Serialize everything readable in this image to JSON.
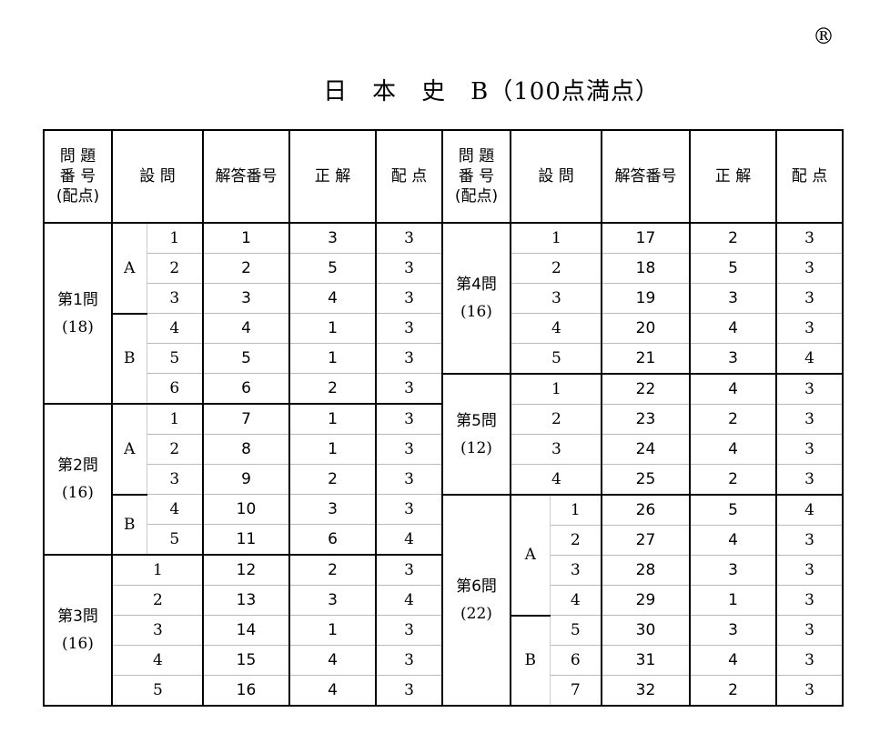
{
  "registered_mark": "®",
  "title": "日　本　史　B（100点満点）",
  "headers": [
    "問 題\n番 号\n(配点)",
    "設 問",
    "解答番号",
    "正 解",
    "配 点"
  ],
  "left": [
    {
      "label": "第1問",
      "points": "(18)",
      "groups": [
        {
          "name": "A",
          "rows": [
            [
              "1",
              "1",
              "3",
              "3"
            ],
            [
              "2",
              "2",
              "5",
              "3"
            ],
            [
              "3",
              "3",
              "4",
              "3"
            ]
          ]
        },
        {
          "name": "B",
          "rows": [
            [
              "4",
              "4",
              "1",
              "3"
            ],
            [
              "5",
              "5",
              "1",
              "3"
            ],
            [
              "6",
              "6",
              "2",
              "3"
            ]
          ]
        }
      ]
    },
    {
      "label": "第2問",
      "points": "(16)",
      "groups": [
        {
          "name": "A",
          "rows": [
            [
              "1",
              "7",
              "1",
              "3"
            ],
            [
              "2",
              "8",
              "1",
              "3"
            ],
            [
              "3",
              "9",
              "2",
              "3"
            ]
          ]
        },
        {
          "name": "B",
          "rows": [
            [
              "4",
              "10",
              "3",
              "3"
            ],
            [
              "5",
              "11",
              "6",
              "4"
            ]
          ]
        }
      ]
    },
    {
      "label": "第3問",
      "points": "(16)",
      "groups": [
        {
          "name": "",
          "rows": [
            [
              "1",
              "12",
              "2",
              "3"
            ],
            [
              "2",
              "13",
              "3",
              "4"
            ],
            [
              "3",
              "14",
              "1",
              "3"
            ],
            [
              "4",
              "15",
              "4",
              "3"
            ],
            [
              "5",
              "16",
              "4",
              "3"
            ]
          ]
        }
      ]
    }
  ],
  "right": [
    {
      "label": "第4問",
      "points": "(16)",
      "groups": [
        {
          "name": "",
          "rows": [
            [
              "1",
              "17",
              "2",
              "3"
            ],
            [
              "2",
              "18",
              "5",
              "3"
            ],
            [
              "3",
              "19",
              "3",
              "3"
            ],
            [
              "4",
              "20",
              "4",
              "3"
            ],
            [
              "5",
              "21",
              "3",
              "4"
            ]
          ]
        }
      ]
    },
    {
      "label": "第5問",
      "points": "(12)",
      "groups": [
        {
          "name": "",
          "rows": [
            [
              "1",
              "22",
              "4",
              "3"
            ],
            [
              "2",
              "23",
              "2",
              "3"
            ],
            [
              "3",
              "24",
              "4",
              "3"
            ],
            [
              "4",
              "25",
              "2",
              "3"
            ]
          ]
        }
      ]
    },
    {
      "label": "第6問",
      "points": "(22)",
      "groups": [
        {
          "name": "A",
          "rows": [
            [
              "1",
              "26",
              "5",
              "4"
            ],
            [
              "2",
              "27",
              "4",
              "3"
            ],
            [
              "3",
              "28",
              "3",
              "3"
            ],
            [
              "4",
              "29",
              "1",
              "3"
            ]
          ]
        },
        {
          "name": "B",
          "rows": [
            [
              "5",
              "30",
              "3",
              "3"
            ],
            [
              "6",
              "31",
              "4",
              "3"
            ],
            [
              "7",
              "32",
              "2",
              "3"
            ]
          ]
        }
      ]
    }
  ]
}
